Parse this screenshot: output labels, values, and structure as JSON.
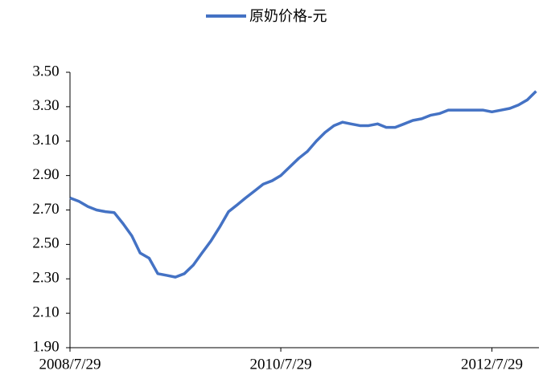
{
  "chart_data": {
    "type": "line",
    "legend_position": "top",
    "x": [
      "2008/7/29",
      "2008/8/29",
      "2008/9/29",
      "2008/10/29",
      "2008/11/29",
      "2008/12/29",
      "2009/1/29",
      "2009/2/28",
      "2009/3/29",
      "2009/4/29",
      "2009/5/29",
      "2009/6/29",
      "2009/7/29",
      "2009/8/29",
      "2009/9/29",
      "2009/10/29",
      "2009/11/29",
      "2009/12/29",
      "2010/1/29",
      "2010/2/28",
      "2010/3/29",
      "2010/4/29",
      "2010/5/29",
      "2010/6/29",
      "2010/7/29",
      "2010/8/29",
      "2010/9/29",
      "2010/10/29",
      "2010/11/29",
      "2010/12/29",
      "2011/1/29",
      "2011/2/28",
      "2011/3/29",
      "2011/4/29",
      "2011/5/29",
      "2011/6/29",
      "2011/7/29",
      "2011/8/29",
      "2011/9/29",
      "2011/10/29",
      "2011/11/29",
      "2011/12/29",
      "2012/1/29",
      "2012/2/29",
      "2012/3/29",
      "2012/4/29",
      "2012/5/29",
      "2012/6/29",
      "2012/7/29",
      "2012/8/29",
      "2012/9/29",
      "2012/10/29",
      "2012/11/29",
      "2012/12/29"
    ],
    "series": [
      {
        "name": "原奶价格-元",
        "color": "#4472c4",
        "values": [
          2.77,
          2.75,
          2.72,
          2.7,
          2.69,
          2.685,
          2.62,
          2.55,
          2.45,
          2.42,
          2.33,
          2.32,
          2.31,
          2.33,
          2.38,
          2.45,
          2.52,
          2.6,
          2.69,
          2.73,
          2.77,
          2.81,
          2.85,
          2.87,
          2.9,
          2.95,
          3.0,
          3.04,
          3.1,
          3.15,
          3.19,
          3.21,
          3.2,
          3.19,
          3.19,
          3.2,
          3.18,
          3.18,
          3.2,
          3.22,
          3.23,
          3.25,
          3.26,
          3.28,
          3.28,
          3.28,
          3.28,
          3.28,
          3.27,
          3.28,
          3.29,
          3.31,
          3.34,
          3.39
        ]
      }
    ],
    "xlim": [
      "2008/7/29",
      "2013/1/8"
    ],
    "xticks": [
      "2008/7/29",
      "2010/7/29",
      "2012/7/29"
    ],
    "ylim": [
      1.9,
      3.5
    ],
    "yticks": [
      {
        "value": 1.9,
        "label": "1.90"
      },
      {
        "value": 2.1,
        "label": "2.10"
      },
      {
        "value": 2.3,
        "label": "2.30"
      },
      {
        "value": 2.5,
        "label": "2.50"
      },
      {
        "value": 2.7,
        "label": "2.70"
      },
      {
        "value": 2.9,
        "label": "2.90"
      },
      {
        "value": 3.1,
        "label": "3.10"
      },
      {
        "value": 3.3,
        "label": "3.30"
      },
      {
        "value": 3.5,
        "label": "3.50"
      }
    ],
    "grid": false
  }
}
